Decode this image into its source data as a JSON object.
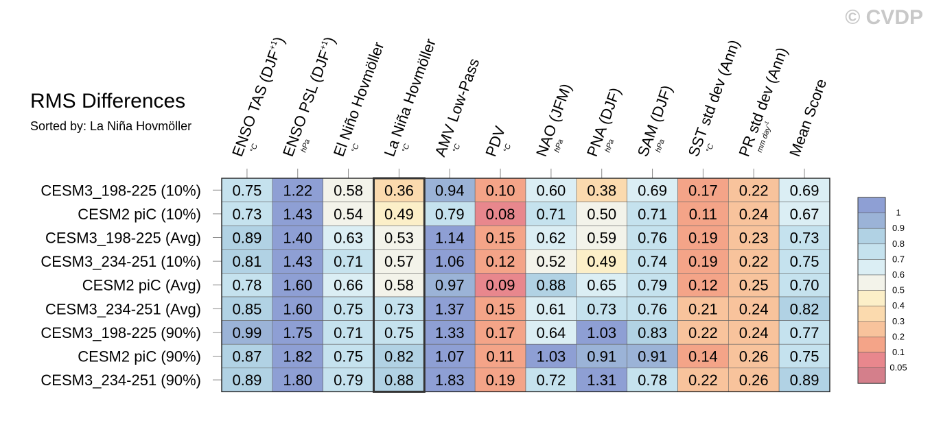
{
  "copyright": "© CVDP",
  "chart_data": {
    "type": "heatmap",
    "title": "RMS Differences",
    "subtitle": "Sorted by: La Niña Hovmöller",
    "columns": [
      {
        "label": "ENSO TAS (DJF",
        "sup": "+1",
        "suffix": ")",
        "unit": "°C"
      },
      {
        "label": "ENSO PSL (DJF",
        "sup": "+1",
        "suffix": ")",
        "unit": "hPa"
      },
      {
        "label": "El Niño Hovmöller",
        "sup": "",
        "suffix": "",
        "unit": "°C"
      },
      {
        "label": "La Niña Hovmöller",
        "sup": "",
        "suffix": "",
        "unit": "°C"
      },
      {
        "label": "AMV Low-Pass",
        "sup": "",
        "suffix": "",
        "unit": "°C"
      },
      {
        "label": "PDV",
        "sup": "",
        "suffix": "",
        "unit": "°C"
      },
      {
        "label": "NAO (JFM)",
        "sup": "",
        "suffix": "",
        "unit": "hPa"
      },
      {
        "label": "PNA (DJF)",
        "sup": "",
        "suffix": "",
        "unit": "hPa"
      },
      {
        "label": "SAM (DJF)",
        "sup": "",
        "suffix": "",
        "unit": "hPa"
      },
      {
        "label": "SST std dev (Ann)",
        "sup": "",
        "suffix": "",
        "unit": "°C"
      },
      {
        "label": "PR std dev (Ann)",
        "sup": "",
        "suffix": "",
        "unit": "mm day",
        "unit_sup": "-1"
      },
      {
        "label": "Mean Score",
        "sup": "",
        "suffix": "",
        "unit": ""
      }
    ],
    "rows": [
      {
        "label": "CESM3_198-225 (10%)",
        "values": [
          "0.75",
          "1.22",
          "0.58",
          "0.36",
          "0.94",
          "0.10",
          "0.60",
          "0.38",
          "0.69",
          "0.17",
          "0.22",
          "0.69"
        ]
      },
      {
        "label": "CESM2 piC (10%)",
        "values": [
          "0.73",
          "1.43",
          "0.54",
          "0.49",
          "0.79",
          "0.08",
          "0.71",
          "0.50",
          "0.71",
          "0.11",
          "0.24",
          "0.67"
        ]
      },
      {
        "label": "CESM3_198-225 (Avg)",
        "values": [
          "0.89",
          "1.40",
          "0.63",
          "0.53",
          "1.14",
          "0.15",
          "0.62",
          "0.59",
          "0.76",
          "0.19",
          "0.23",
          "0.73"
        ]
      },
      {
        "label": "CESM3_234-251 (10%)",
        "values": [
          "0.81",
          "1.43",
          "0.71",
          "0.57",
          "1.06",
          "0.12",
          "0.52",
          "0.49",
          "0.74",
          "0.19",
          "0.22",
          "0.75"
        ]
      },
      {
        "label": "CESM2 piC (Avg)",
        "values": [
          "0.78",
          "1.60",
          "0.66",
          "0.58",
          "0.97",
          "0.09",
          "0.88",
          "0.65",
          "0.79",
          "0.12",
          "0.25",
          "0.70"
        ]
      },
      {
        "label": "CESM3_234-251 (Avg)",
        "values": [
          "0.85",
          "1.60",
          "0.75",
          "0.73",
          "1.37",
          "0.15",
          "0.61",
          "0.73",
          "0.76",
          "0.21",
          "0.24",
          "0.82"
        ]
      },
      {
        "label": "CESM3_198-225 (90%)",
        "values": [
          "0.99",
          "1.75",
          "0.71",
          "0.75",
          "1.33",
          "0.17",
          "0.64",
          "1.03",
          "0.83",
          "0.22",
          "0.24",
          "0.77"
        ]
      },
      {
        "label": "CESM2 piC (90%)",
        "values": [
          "0.87",
          "1.82",
          "0.75",
          "0.82",
          "1.07",
          "0.11",
          "1.03",
          "0.91",
          "0.91",
          "0.14",
          "0.26",
          "0.75"
        ]
      },
      {
        "label": "CESM3_234-251 (90%)",
        "values": [
          "0.89",
          "1.80",
          "0.79",
          "0.88",
          "1.83",
          "0.19",
          "0.72",
          "1.31",
          "0.78",
          "0.22",
          "0.26",
          "0.89"
        ]
      }
    ],
    "highlight_column": 3,
    "colorbar": {
      "labels": [
        "1",
        "0.9",
        "0.8",
        "0.7",
        "0.6",
        "0.5",
        "0.4",
        "0.3",
        "0.2",
        "0.1",
        "0.05"
      ],
      "thresholds": [
        0.05,
        0.1,
        0.2,
        0.3,
        0.4,
        0.5,
        0.6,
        0.7,
        0.8,
        0.9,
        1
      ],
      "colors": [
        "#d47f8b",
        "#e8878d",
        "#f4a488",
        "#f8c39c",
        "#fbdaae",
        "#fcefc8",
        "#f3f3ea",
        "#dbeef4",
        "#c5e2ee",
        "#b1d2e4",
        "#9bb3d7",
        "#8e9fd4"
      ]
    }
  }
}
